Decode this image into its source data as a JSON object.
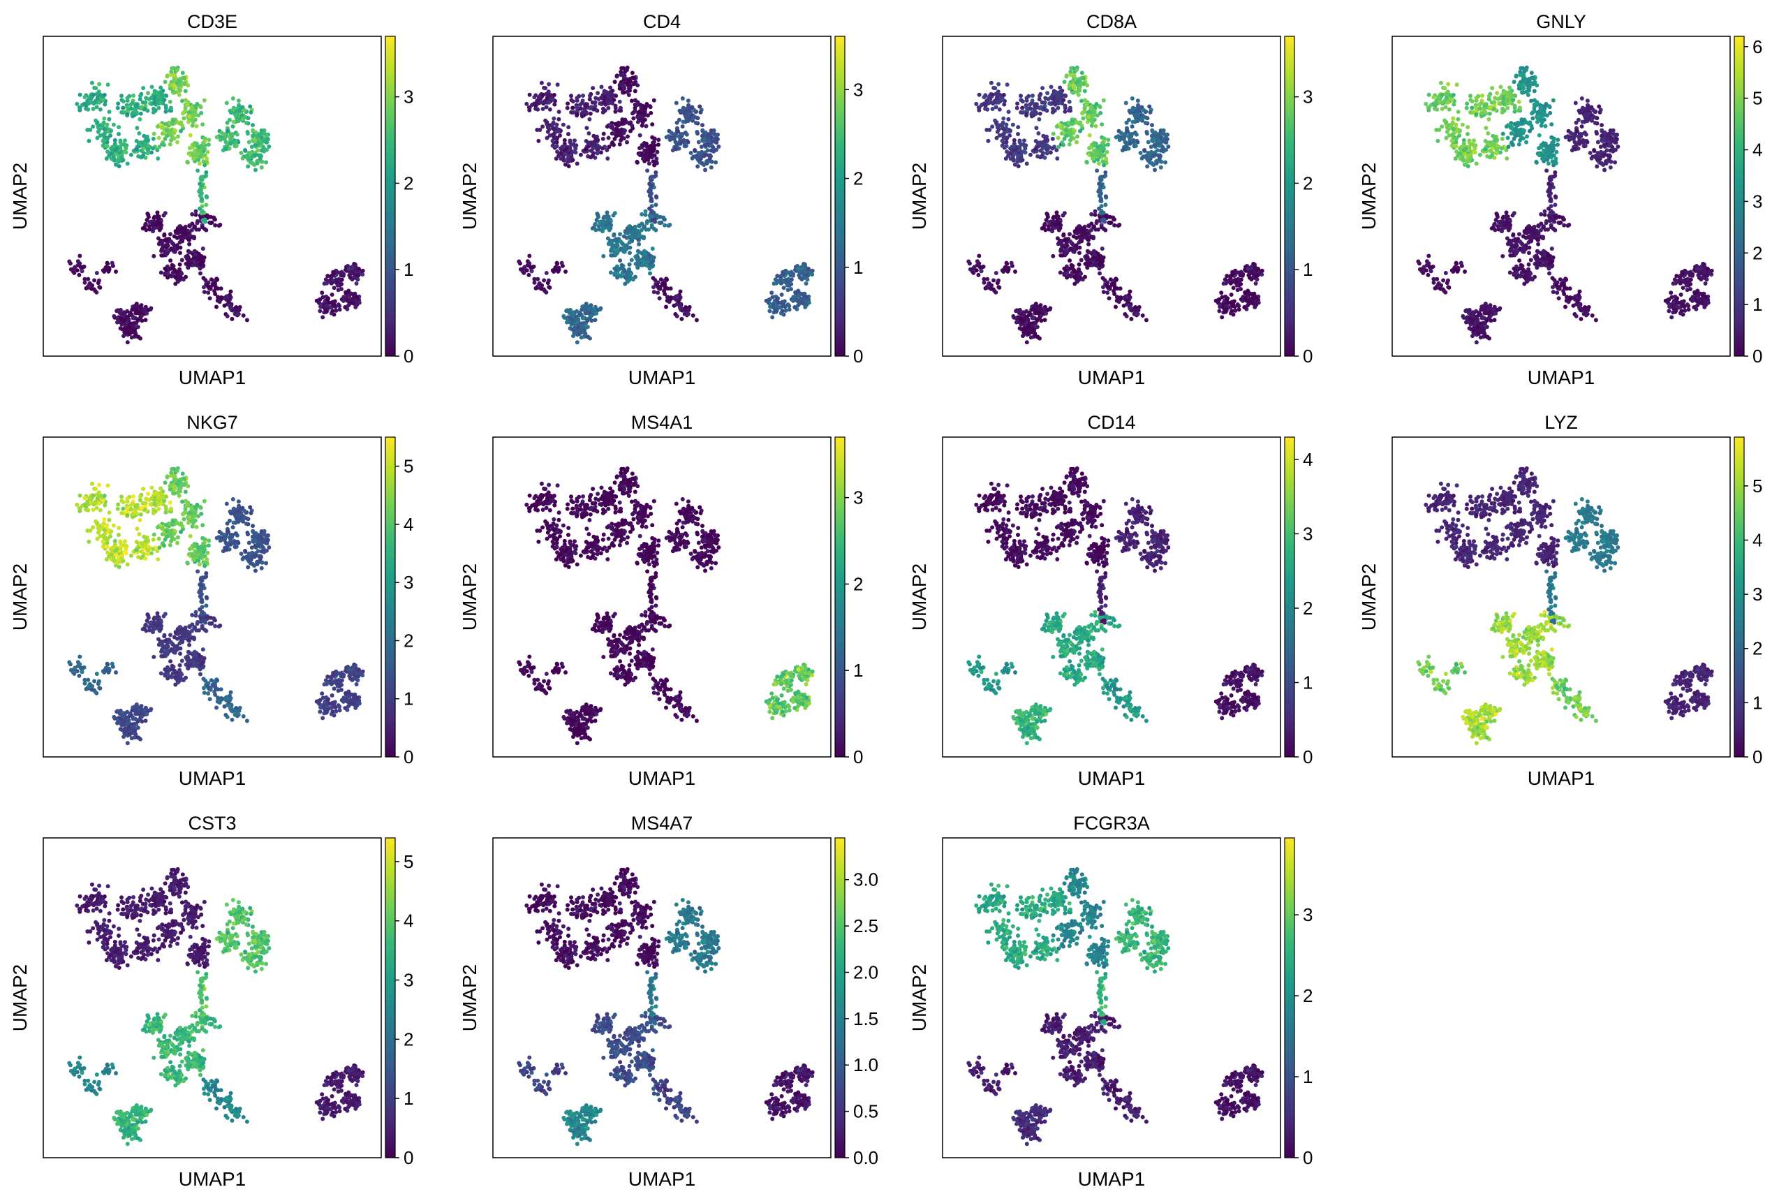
{
  "figure": {
    "colormap": "viridis",
    "colormap_stops": [
      "#440154",
      "#482878",
      "#3e4989",
      "#31688e",
      "#26828e",
      "#1f9e89",
      "#35b779",
      "#6ece58",
      "#b5de2b",
      "#fde725"
    ],
    "axis_frame_color": "#000000"
  },
  "chart_data": [
    {
      "type": "scatter",
      "title": "CD3E",
      "xlabel": "UMAP1",
      "ylabel": "UMAP2",
      "grid": false,
      "colorbar": true,
      "value_range": [
        0,
        3.7
      ],
      "colorbar_ticks": [
        "0",
        "1",
        "2",
        "3"
      ],
      "colorbar_tick_values": [
        0,
        1,
        2,
        3
      ],
      "cluster_values": {
        "cd4t": 2.3,
        "cd8t": 2.9,
        "nk": 2.5,
        "cd14mono": 0.1,
        "fcgr3amono": 0.1,
        "bcell": 0.1,
        "dc": 0.2
      }
    },
    {
      "type": "scatter",
      "title": "CD4",
      "xlabel": "UMAP1",
      "ylabel": "UMAP2",
      "grid": false,
      "colorbar": true,
      "value_range": [
        0,
        3.6
      ],
      "colorbar_ticks": [
        "0",
        "1",
        "2",
        "3"
      ],
      "colorbar_tick_values": [
        0,
        1,
        2,
        3
      ],
      "cluster_values": {
        "cd4t": 0.3,
        "cd8t": 0.1,
        "nk": 0.9,
        "cd14mono": 1.4,
        "fcgr3amono": 1.2,
        "bcell": 0.1,
        "dc": 1.1
      }
    },
    {
      "type": "scatter",
      "title": "CD8A",
      "xlabel": "UMAP1",
      "ylabel": "UMAP2",
      "grid": false,
      "colorbar": true,
      "value_range": [
        0,
        3.7
      ],
      "colorbar_ticks": [
        "0",
        "1",
        "2",
        "3"
      ],
      "colorbar_tick_values": [
        0,
        1,
        2,
        3
      ],
      "cluster_values": {
        "cd4t": 0.6,
        "cd8t": 2.8,
        "nk": 1.2,
        "cd14mono": 0.1,
        "fcgr3amono": 0.1,
        "bcell": 0.1,
        "dc": 0.1
      }
    },
    {
      "type": "scatter",
      "title": "GNLY",
      "xlabel": "UMAP1",
      "ylabel": "UMAP2",
      "grid": false,
      "colorbar": true,
      "value_range": [
        0,
        6.2
      ],
      "colorbar_ticks": [
        "0",
        "1",
        "2",
        "3",
        "4",
        "5",
        "6"
      ],
      "colorbar_tick_values": [
        0,
        1,
        2,
        3,
        4,
        5,
        6
      ],
      "cluster_values": {
        "cd4t": 4.8,
        "cd8t": 3.2,
        "nk": 0.6,
        "cd14mono": 0.3,
        "fcgr3amono": 0.3,
        "bcell": 0.2,
        "dc": 0.3
      }
    },
    {
      "type": "scatter",
      "title": "NKG7",
      "xlabel": "UMAP1",
      "ylabel": "UMAP2",
      "grid": false,
      "colorbar": true,
      "value_range": [
        0,
        5.5
      ],
      "colorbar_ticks": [
        "0",
        "1",
        "2",
        "3",
        "4",
        "5"
      ],
      "colorbar_tick_values": [
        0,
        1,
        2,
        3,
        4,
        5
      ],
      "cluster_values": {
        "cd4t": 4.9,
        "cd8t": 4.2,
        "nk": 1.4,
        "cd14mono": 0.9,
        "fcgr3amono": 1.2,
        "bcell": 1.8,
        "dc": 1.1
      }
    },
    {
      "type": "scatter",
      "title": "MS4A1",
      "xlabel": "UMAP1",
      "ylabel": "UMAP2",
      "grid": false,
      "colorbar": true,
      "value_range": [
        0,
        3.7
      ],
      "colorbar_ticks": [
        "0",
        "1",
        "2",
        "3"
      ],
      "colorbar_tick_values": [
        0,
        1,
        2,
        3
      ],
      "cluster_values": {
        "cd4t": 0.05,
        "cd8t": 0.05,
        "nk": 0.05,
        "cd14mono": 0.05,
        "fcgr3amono": 0.05,
        "bcell": 0.05,
        "dc": 2.8
      }
    },
    {
      "type": "scatter",
      "title": "CD14",
      "xlabel": "UMAP1",
      "ylabel": "UMAP2",
      "grid": false,
      "colorbar": true,
      "value_range": [
        0,
        4.3
      ],
      "colorbar_ticks": [
        "0",
        "1",
        "2",
        "3",
        "4"
      ],
      "colorbar_tick_values": [
        0,
        1,
        2,
        3,
        4
      ],
      "cluster_values": {
        "cd4t": 0.1,
        "cd8t": 0.1,
        "nk": 0.4,
        "cd14mono": 2.6,
        "fcgr3amono": 2.8,
        "bcell": 2.3,
        "dc": 0.2
      }
    },
    {
      "type": "scatter",
      "title": "LYZ",
      "xlabel": "UMAP1",
      "ylabel": "UMAP2",
      "grid": false,
      "colorbar": true,
      "value_range": [
        0,
        5.9
      ],
      "colorbar_ticks": [
        "0",
        "1",
        "2",
        "3",
        "4",
        "5"
      ],
      "colorbar_tick_values": [
        0,
        1,
        2,
        3,
        4,
        5
      ],
      "cluster_values": {
        "cd4t": 0.6,
        "cd8t": 0.6,
        "nk": 2.4,
        "cd14mono": 5.0,
        "fcgr3amono": 5.1,
        "bcell": 4.6,
        "dc": 0.6
      }
    },
    {
      "type": "scatter",
      "title": "CST3",
      "xlabel": "UMAP1",
      "ylabel": "UMAP2",
      "grid": false,
      "colorbar": true,
      "value_range": [
        0,
        5.4
      ],
      "colorbar_ticks": [
        "0",
        "1",
        "2",
        "3",
        "4",
        "5"
      ],
      "colorbar_tick_values": [
        0,
        1,
        2,
        3,
        4,
        5
      ],
      "cluster_values": {
        "cd4t": 0.4,
        "cd8t": 0.4,
        "nk": 3.9,
        "cd14mono": 3.6,
        "fcgr3amono": 3.5,
        "bcell": 2.5,
        "dc": 0.4
      }
    },
    {
      "type": "scatter",
      "title": "MS4A7",
      "xlabel": "UMAP1",
      "ylabel": "UMAP2",
      "grid": false,
      "colorbar": true,
      "value_range": [
        0,
        3.45
      ],
      "colorbar_ticks": [
        "0.0",
        "0.5",
        "1.0",
        "1.5",
        "2.0",
        "2.5",
        "3.0"
      ],
      "colorbar_tick_values": [
        0,
        0.5,
        1,
        1.5,
        2,
        2.5,
        3
      ],
      "cluster_values": {
        "cd4t": 0.1,
        "cd8t": 0.1,
        "nk": 1.4,
        "cd14mono": 0.8,
        "fcgr3amono": 1.6,
        "bcell": 0.7,
        "dc": 0.2
      }
    },
    {
      "type": "scatter",
      "title": "FCGR3A",
      "xlabel": "UMAP1",
      "ylabel": "UMAP2",
      "grid": false,
      "colorbar": true,
      "value_range": [
        0,
        3.95
      ],
      "colorbar_ticks": [
        "0",
        "1",
        "2",
        "3"
      ],
      "colorbar_tick_values": [
        0,
        1,
        2,
        3
      ],
      "cluster_values": {
        "cd4t": 2.4,
        "cd8t": 1.8,
        "nk": 2.6,
        "cd14mono": 0.3,
        "fcgr3amono": 0.5,
        "bcell": 0.3,
        "dc": 0.2
      }
    }
  ]
}
